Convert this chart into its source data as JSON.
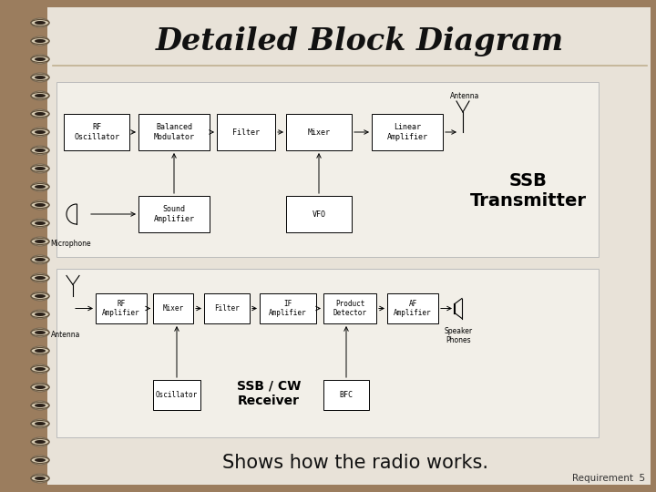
{
  "title": "Detailed Block Diagram",
  "subtitle": "Shows how the radio works.",
  "requirement": "Requirement  5",
  "bg_color": "#9b7d5e",
  "slide_bg": "#e8e2d8",
  "tx_panel_bg": "#f2efe8",
  "rx_panel_bg": "#f2efe8",
  "title_color": "#111111",
  "transmitter_label": "SSB\nTransmitter",
  "receiver_label": "SSB / CW\nReceiver",
  "tx_blocks": [
    "RF\nOscillator",
    "Balanced\nModulator",
    "Filter",
    "Mixer",
    "Linear\nAmplifier"
  ],
  "tx_lower_blocks": [
    "Sound\nAmplifier",
    "VFO"
  ],
  "rx_blocks": [
    "RF\nAmplifier",
    "Mixer",
    "Filter",
    "IF\nAmplifier",
    "Product\nDetector",
    "AF\nAmplifier"
  ],
  "rx_lower_blocks": [
    "Oscillator",
    "BFC"
  ]
}
